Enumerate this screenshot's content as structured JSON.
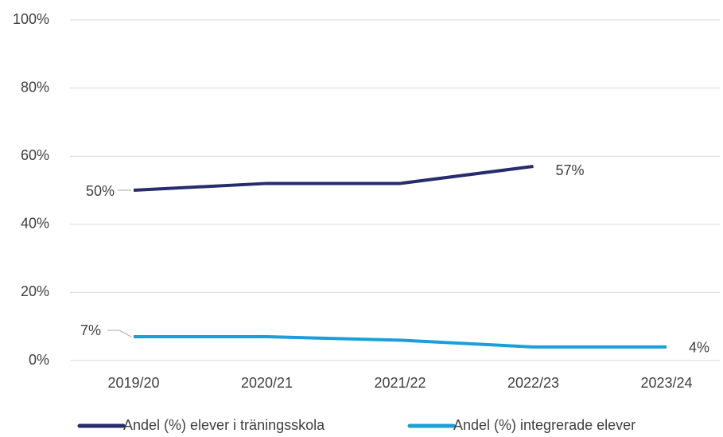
{
  "chart_data": {
    "type": "line",
    "categories": [
      "2019/20",
      "2020/21",
      "2021/22",
      "2022/23",
      "2023/24"
    ],
    "series": [
      {
        "name": "Andel (%) elever i träningsskola",
        "color": "#262c6c",
        "values": [
          50,
          52,
          52,
          57,
          null
        ],
        "value_labels": [
          "50%",
          null,
          null,
          "57%",
          null
        ]
      },
      {
        "name": "Andel (%) integrerade elever",
        "color": "#1c9ed8",
        "values": [
          7,
          7,
          6,
          4,
          4
        ],
        "value_labels": [
          "7%",
          null,
          null,
          null,
          "4%"
        ]
      }
    ],
    "ylim": [
      0,
      100
    ],
    "yticks": [
      {
        "value": 0,
        "label": "0%"
      },
      {
        "value": 20,
        "label": "20%"
      },
      {
        "value": 40,
        "label": "40%"
      },
      {
        "value": 60,
        "label": "60%"
      },
      {
        "value": 80,
        "label": "80%"
      },
      {
        "value": 100,
        "label": "100%"
      }
    ],
    "grid": true,
    "legend": "bottom"
  }
}
